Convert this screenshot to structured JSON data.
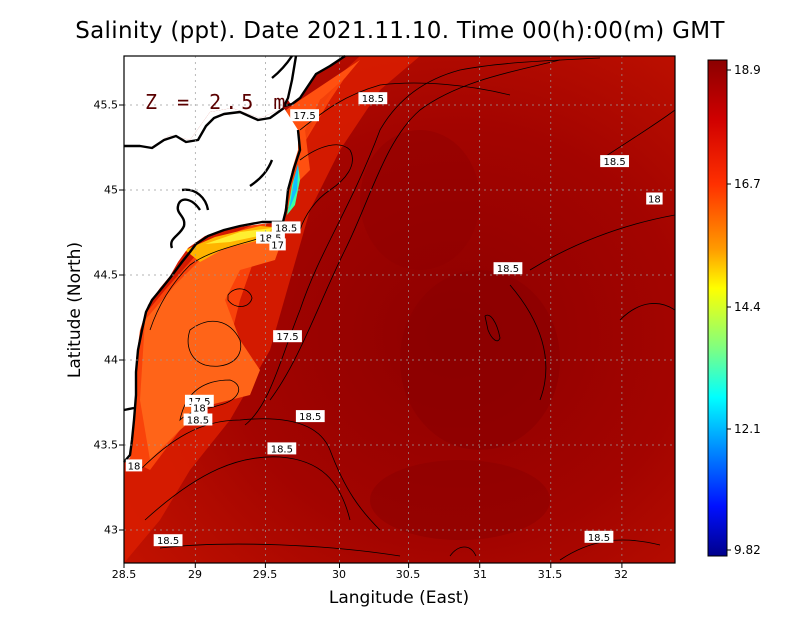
{
  "title": "Salinity (ppt). Date 2021.11.10. Time 00(h):00(m) GMT",
  "depth_label": "Z = 2.5 m",
  "xlabel": "Langitude (East)",
  "ylabel": "Latitude (North)",
  "x_ticks": [
    "28.5",
    "29",
    "29.5",
    "30",
    "30.5",
    "31",
    "31.5",
    "32"
  ],
  "y_ticks": [
    "45.5",
    "45",
    "44.5",
    "44",
    "43.5",
    "43"
  ],
  "colorbar": {
    "ticks": [
      "18.9",
      "16.7",
      "14.4",
      "12.1",
      "9.82"
    ],
    "colors": [
      "#8b0000",
      "#c00000",
      "#ff0000",
      "#ff7f00",
      "#ffff00",
      "#7fff7f",
      "#00ffff",
      "#007fff",
      "#0000ff",
      "#00008b"
    ]
  },
  "contour_labels": [
    {
      "text": "18.5",
      "lon": 30.25,
      "lat": 45.54
    },
    {
      "text": "17.5",
      "lon": 29.77,
      "lat": 45.44
    },
    {
      "text": "18.5",
      "lon": 31.95,
      "lat": 45.17
    },
    {
      "text": "18",
      "lon": 32.23,
      "lat": 44.95
    },
    {
      "text": "18.5",
      "lon": 29.64,
      "lat": 44.78
    },
    {
      "text": "18.5",
      "lon": 29.53,
      "lat": 44.72
    },
    {
      "text": "17",
      "lon": 29.58,
      "lat": 44.68
    },
    {
      "text": "18.5",
      "lon": 31.2,
      "lat": 44.54
    },
    {
      "text": "17.5",
      "lon": 29.65,
      "lat": 44.14
    },
    {
      "text": "17.5",
      "lon": 29.03,
      "lat": 43.76
    },
    {
      "text": "18",
      "lon": 29.03,
      "lat": 43.72
    },
    {
      "text": "18.5",
      "lon": 29.02,
      "lat": 43.65
    },
    {
      "text": "18.5",
      "lon": 29.81,
      "lat": 43.67
    },
    {
      "text": "18.5",
      "lon": 29.61,
      "lat": 43.48
    },
    {
      "text": "18",
      "lon": 28.57,
      "lat": 43.38
    },
    {
      "text": "18.5",
      "lon": 28.81,
      "lat": 42.94
    },
    {
      "text": "18.5",
      "lon": 31.84,
      "lat": 42.96
    }
  ],
  "colors": {
    "sea_dark": "#8c0000",
    "sea_mid": "#b50a00",
    "sea_bright": "#e02400",
    "coastal": "#ff5a10",
    "coastal_front": "#ffb000",
    "land": "#ffffff",
    "coastline": "#000000"
  }
}
